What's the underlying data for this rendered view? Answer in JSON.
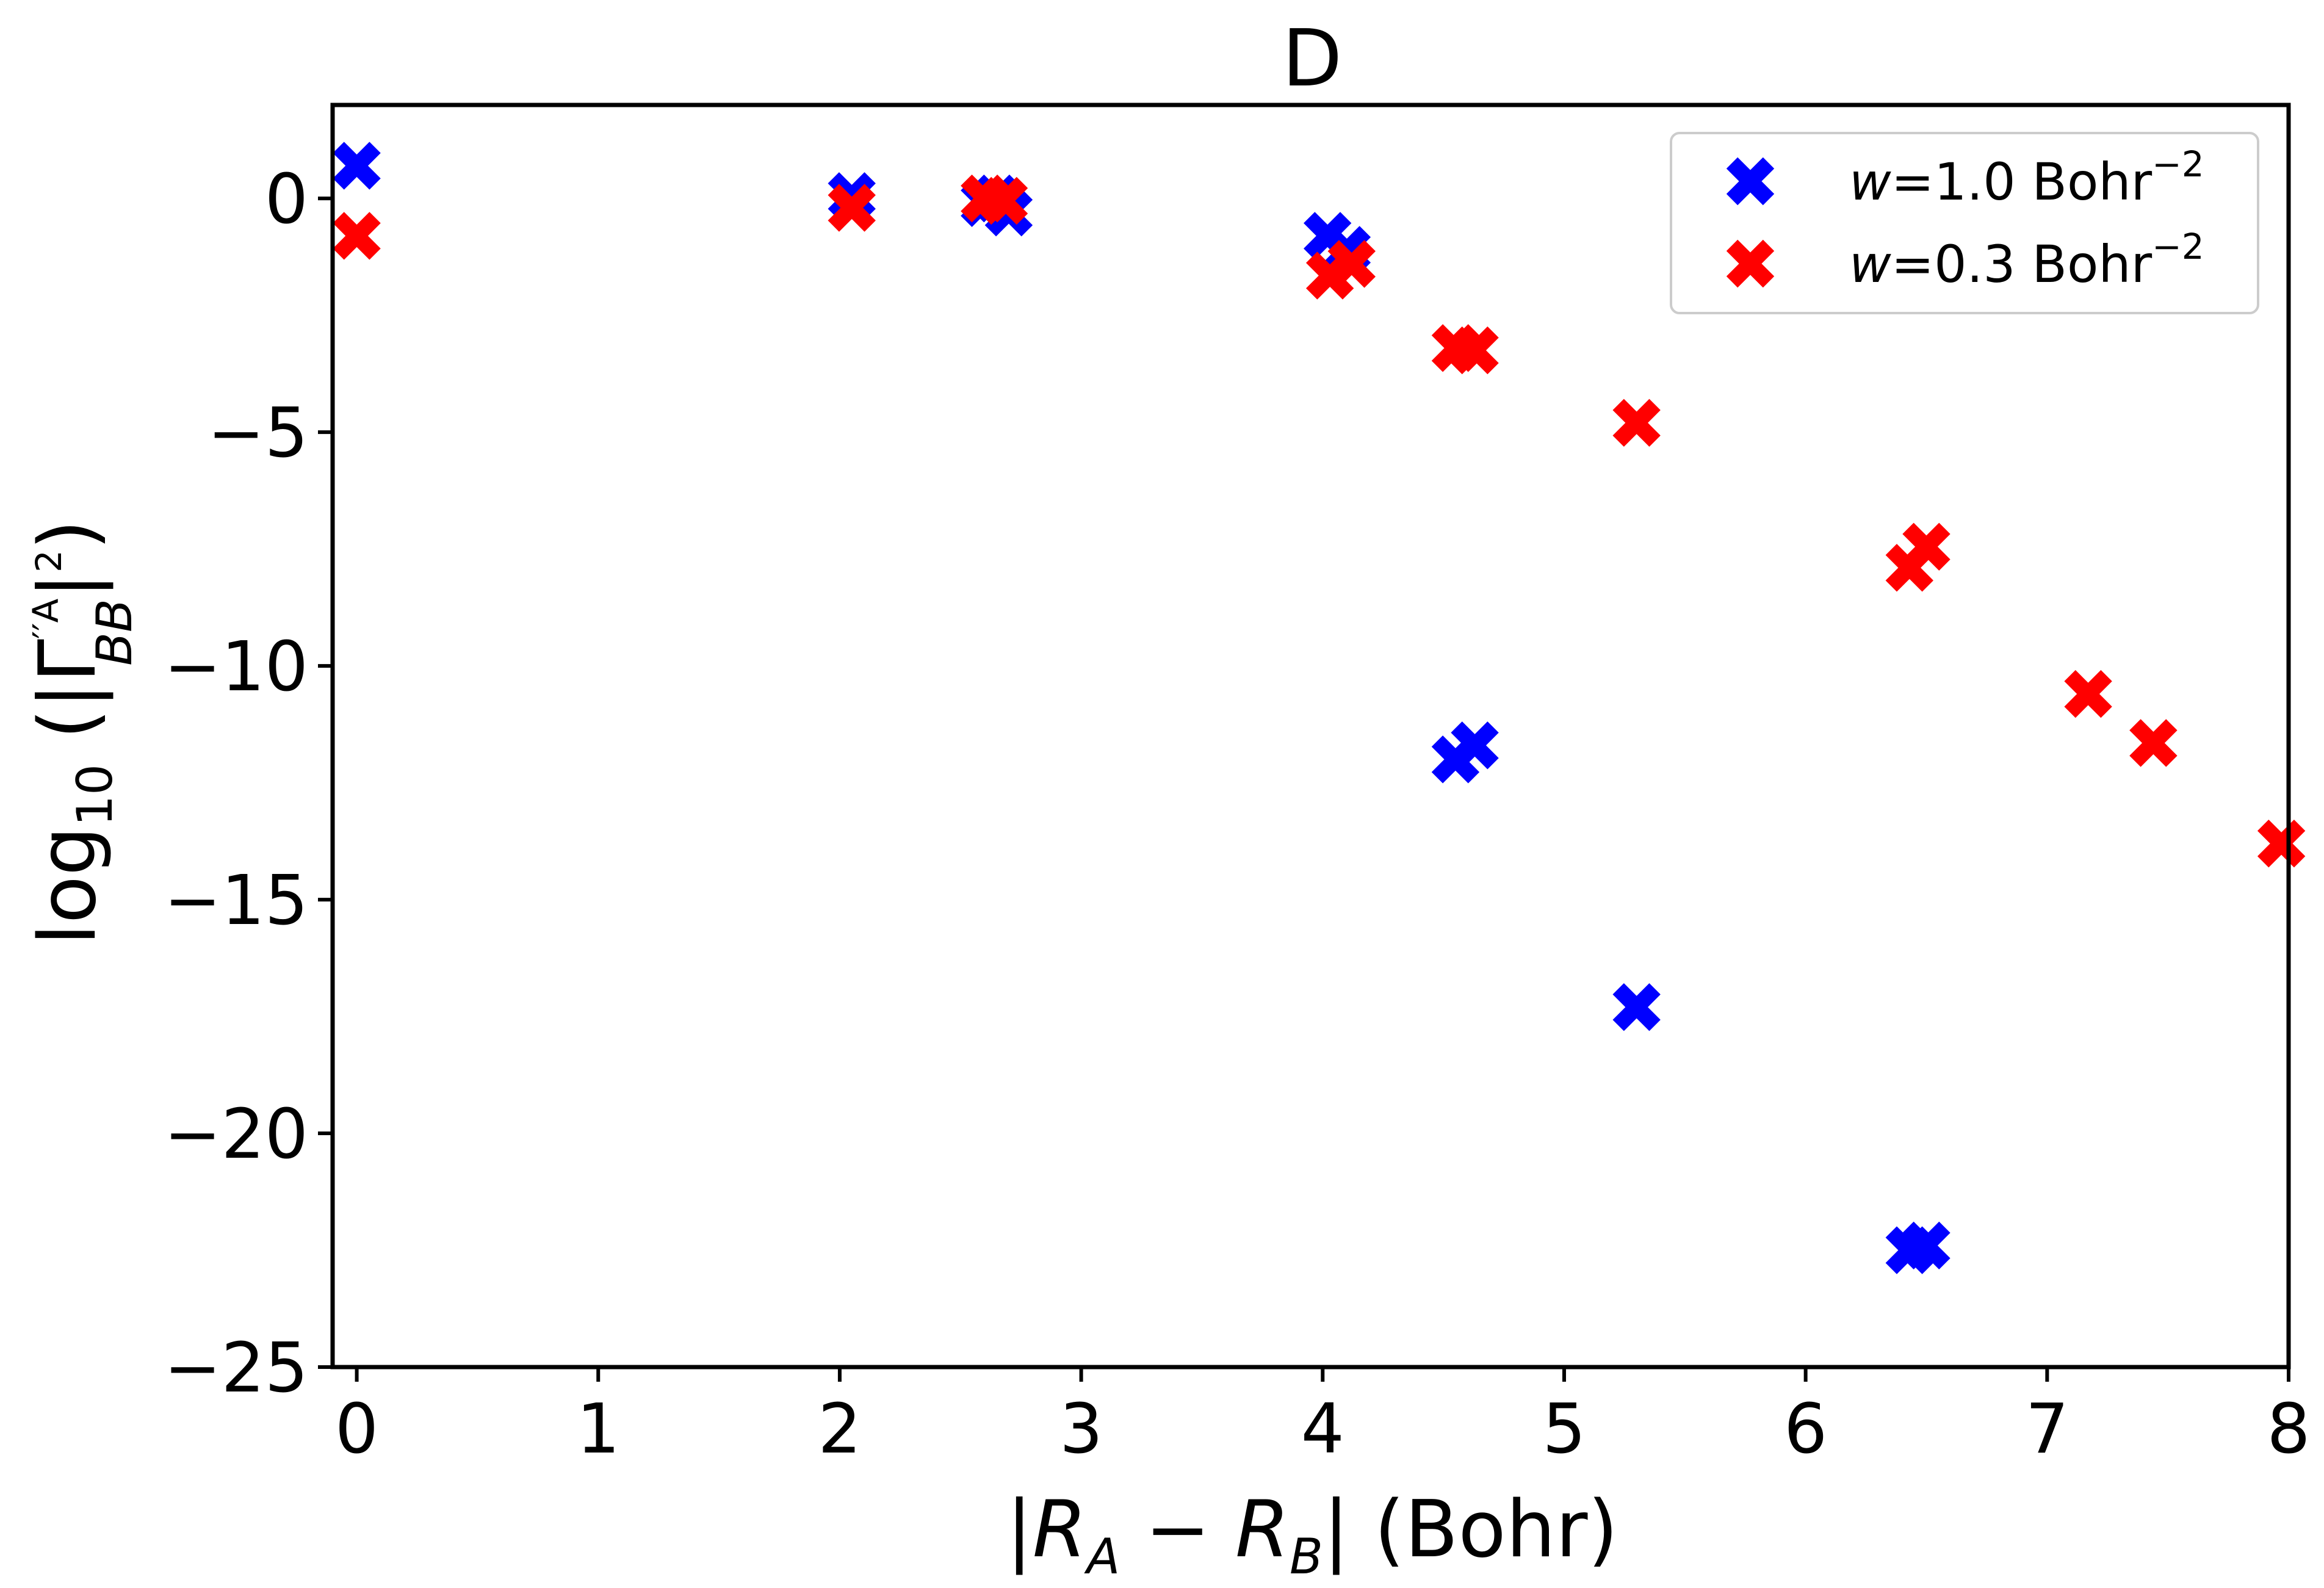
{
  "chart_data": {
    "type": "scatter",
    "title": "D",
    "xlabel": "|R_A − R_B| (Bohr)",
    "ylabel": "log10(|Γ''^A_BB|^2)",
    "xlim": [
      -0.1,
      8
    ],
    "ylim": [
      -25,
      2
    ],
    "x_ticks": [
      0,
      1,
      2,
      3,
      4,
      5,
      6,
      7,
      8
    ],
    "y_ticks": [
      0,
      -5,
      -10,
      -15,
      -20,
      -25
    ],
    "x_tick_labels": [
      "0",
      "1",
      "2",
      "3",
      "4",
      "5",
      "6",
      "7",
      "8"
    ],
    "y_tick_labels": [
      "0",
      "−5",
      "−10",
      "−15",
      "−20",
      "−25"
    ],
    "legend_position": "top-right",
    "marker": "X",
    "series": [
      {
        "name": "w=1.0 Bohr^-2",
        "legend_main": "=1.0 Bohr",
        "legend_var": "w",
        "legend_exp": "−2",
        "color": "#0000ff",
        "points": [
          [
            0.0,
            0.7
          ],
          [
            2.05,
            0.05
          ],
          [
            2.6,
            -0.1
          ],
          [
            2.65,
            0.0
          ],
          [
            2.7,
            -0.3
          ],
          [
            4.02,
            -0.8
          ],
          [
            4.1,
            -1.1
          ],
          [
            4.55,
            -12.0
          ],
          [
            4.63,
            -11.7
          ],
          [
            5.3,
            -17.3
          ],
          [
            6.43,
            -22.5
          ],
          [
            6.5,
            -22.4
          ]
        ]
      },
      {
        "name": "w=0.3 Bohr^-2",
        "legend_main": "=0.3 Bohr",
        "legend_var": "w",
        "legend_exp": "−2",
        "color": "#ff0000",
        "points": [
          [
            0.0,
            -0.8
          ],
          [
            2.05,
            -0.2
          ],
          [
            2.6,
            0.0
          ],
          [
            2.68,
            -0.05
          ],
          [
            4.03,
            -1.65
          ],
          [
            4.12,
            -1.4
          ],
          [
            4.55,
            -3.2
          ],
          [
            4.63,
            -3.25
          ],
          [
            5.3,
            -4.8
          ],
          [
            6.43,
            -7.9
          ],
          [
            6.5,
            -7.45
          ],
          [
            7.17,
            -10.6
          ],
          [
            7.44,
            -11.65
          ],
          [
            7.97,
            -13.8
          ]
        ]
      }
    ]
  }
}
